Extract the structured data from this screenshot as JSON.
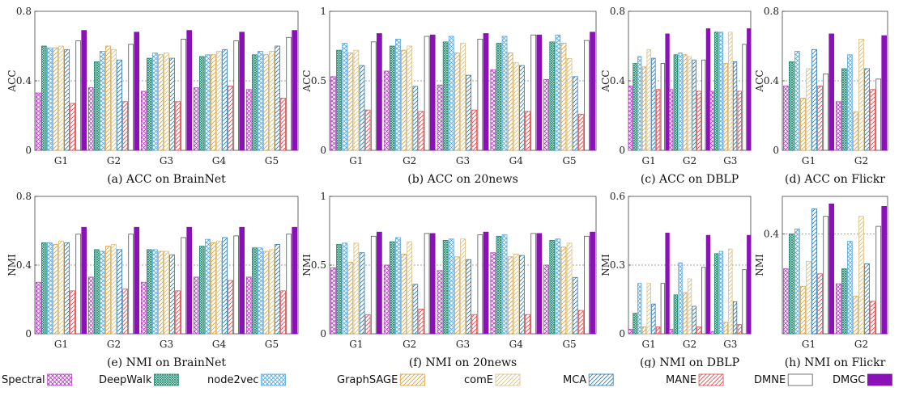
{
  "methods": [
    {
      "name": "Spectral",
      "color": "#b040c0",
      "pattern": "cross"
    },
    {
      "name": "DeepWalk",
      "color": "#1f8a70",
      "pattern": "dense"
    },
    {
      "name": "node2vec",
      "color": "#58a8e0",
      "pattern": "cross"
    },
    {
      "name": "GraphSAGE",
      "color": "#d8a040",
      "pattern": "diag"
    },
    {
      "name": "comE",
      "color": "#d8c080",
      "pattern": "diag"
    },
    {
      "name": "MCA",
      "color": "#2a7ab0",
      "pattern": "diag"
    },
    {
      "name": "MANE",
      "color": "#e04848",
      "pattern": "diag"
    },
    {
      "name": "DMNE",
      "color": "#555555",
      "pattern": "none"
    },
    {
      "name": "DMGC",
      "color": "#8b10b8",
      "pattern": "solid"
    }
  ],
  "chart_data": [
    {
      "type": "bar",
      "title": "",
      "caption": "(a)  ACC on BrainNet",
      "ylabel": "ACC",
      "ylim": [
        0,
        0.8
      ],
      "yticks": [
        "0",
        "0.4",
        "0.8"
      ],
      "ytick_values": [
        0,
        0.4,
        0.8
      ],
      "dashed_at": 0.4,
      "categories": [
        "G1",
        "G2",
        "G3",
        "G4",
        "G5"
      ],
      "series": [
        {
          "values": [
            0.33,
            0.36,
            0.34,
            0.36,
            0.35
          ]
        },
        {
          "values": [
            0.6,
            0.51,
            0.53,
            0.54,
            0.55
          ]
        },
        {
          "values": [
            0.59,
            0.57,
            0.56,
            0.55,
            0.57
          ]
        },
        {
          "values": [
            0.59,
            0.6,
            0.55,
            0.55,
            0.55
          ]
        },
        {
          "values": [
            0.6,
            0.58,
            0.56,
            0.57,
            0.57
          ]
        },
        {
          "values": [
            0.58,
            0.52,
            0.53,
            0.58,
            0.6
          ]
        },
        {
          "values": [
            0.27,
            0.28,
            0.28,
            0.37,
            0.3
          ]
        },
        {
          "values": [
            0.63,
            0.61,
            0.64,
            0.63,
            0.65
          ]
        },
        {
          "values": [
            0.69,
            0.68,
            0.69,
            0.68,
            0.69
          ]
        }
      ]
    },
    {
      "type": "bar",
      "title": "",
      "caption": "(b)  ACC on 20news",
      "ylabel": "ACC",
      "ylim": [
        0,
        1
      ],
      "yticks": [
        "0",
        "0.5",
        "1"
      ],
      "ytick_values": [
        0,
        0.5,
        1
      ],
      "dashed_at": 0.5,
      "categories": [
        "G1",
        "G2",
        "G3",
        "G4",
        "G5"
      ],
      "series": [
        {
          "values": [
            0.53,
            0.57,
            0.47,
            0.58,
            0.51
          ]
        },
        {
          "values": [
            0.72,
            0.75,
            0.78,
            0.77,
            0.78
          ]
        },
        {
          "values": [
            0.77,
            0.8,
            0.82,
            0.82,
            0.83
          ]
        },
        {
          "values": [
            0.7,
            0.72,
            0.7,
            0.7,
            0.77
          ]
        },
        {
          "values": [
            0.72,
            0.75,
            0.77,
            0.63,
            0.66
          ]
        },
        {
          "values": [
            0.61,
            0.46,
            0.54,
            0.61,
            0.53
          ]
        },
        {
          "values": [
            0.29,
            0.28,
            0.29,
            0.28,
            0.26
          ]
        },
        {
          "values": [
            0.78,
            0.82,
            0.8,
            0.83,
            0.79
          ]
        },
        {
          "values": [
            0.84,
            0.83,
            0.84,
            0.83,
            0.85
          ]
        }
      ]
    },
    {
      "type": "bar",
      "title": "",
      "caption": "(c)  ACC on DBLP",
      "ylabel": "ACC",
      "ylim": [
        0,
        0.8
      ],
      "yticks": [
        "0",
        "0.4",
        "0.8"
      ],
      "ytick_values": [
        0,
        0.4,
        0.8
      ],
      "dashed_at": 0.4,
      "categories": [
        "G1",
        "G2",
        "G3"
      ],
      "series": [
        {
          "values": [
            0.37,
            0.35,
            0.34
          ]
        },
        {
          "values": [
            0.5,
            0.55,
            0.68
          ]
        },
        {
          "values": [
            0.54,
            0.56,
            0.68
          ]
        },
        {
          "values": [
            0.48,
            0.55,
            0.5
          ]
        },
        {
          "values": [
            0.58,
            0.54,
            0.68
          ]
        },
        {
          "values": [
            0.53,
            0.52,
            0.51
          ]
        },
        {
          "values": [
            0.35,
            0.34,
            0.34
          ]
        },
        {
          "values": [
            0.5,
            0.52,
            0.61
          ]
        },
        {
          "values": [
            0.67,
            0.7,
            0.7
          ]
        }
      ]
    },
    {
      "type": "bar",
      "title": "",
      "caption": "(d)  ACC on Flickr",
      "ylabel": "ACC",
      "ylim": [
        0,
        0.8
      ],
      "yticks": [
        "0",
        "0.4",
        "0.8"
      ],
      "ytick_values": [
        0,
        0.4,
        0.8
      ],
      "dashed_at": 0.4,
      "categories": [
        "G1",
        "G2"
      ],
      "series": [
        {
          "values": [
            0.37,
            0.28
          ]
        },
        {
          "values": [
            0.51,
            0.47
          ]
        },
        {
          "values": [
            0.57,
            0.55
          ]
        },
        {
          "values": [
            0.3,
            0.22
          ]
        },
        {
          "values": [
            0.47,
            0.64
          ]
        },
        {
          "values": [
            0.58,
            0.47
          ]
        },
        {
          "values": [
            0.37,
            0.35
          ]
        },
        {
          "values": [
            0.44,
            0.41
          ]
        },
        {
          "values": [
            0.67,
            0.66
          ]
        }
      ]
    },
    {
      "type": "bar",
      "title": "",
      "caption": "(e)  NMI on BrainNet",
      "ylabel": "NMI",
      "ylim": [
        0,
        0.8
      ],
      "yticks": [
        "0",
        "0.4",
        "0.8"
      ],
      "ytick_values": [
        0,
        0.4,
        0.8
      ],
      "dashed_at": 0.4,
      "categories": [
        "G1",
        "G2",
        "G3",
        "G4",
        "G5"
      ],
      "series": [
        {
          "values": [
            0.3,
            0.33,
            0.3,
            0.33,
            0.33
          ]
        },
        {
          "values": [
            0.53,
            0.49,
            0.49,
            0.51,
            0.5
          ]
        },
        {
          "values": [
            0.53,
            0.48,
            0.49,
            0.55,
            0.5
          ]
        },
        {
          "values": [
            0.52,
            0.51,
            0.48,
            0.53,
            0.48
          ]
        },
        {
          "values": [
            0.54,
            0.52,
            0.48,
            0.54,
            0.49
          ]
        },
        {
          "values": [
            0.53,
            0.49,
            0.46,
            0.56,
            0.52
          ]
        },
        {
          "values": [
            0.25,
            0.26,
            0.25,
            0.31,
            0.25
          ]
        },
        {
          "values": [
            0.58,
            0.58,
            0.56,
            0.57,
            0.58
          ]
        },
        {
          "values": [
            0.62,
            0.62,
            0.62,
            0.62,
            0.62
          ]
        }
      ]
    },
    {
      "type": "bar",
      "title": "",
      "caption": "(f)  NMI on 20news",
      "ylabel": "NMI",
      "ylim": [
        0,
        1
      ],
      "yticks": [
        "0",
        "0.5",
        "1"
      ],
      "ytick_values": [
        0,
        0.5,
        1
      ],
      "dashed_at": 0.5,
      "categories": [
        "G1",
        "G2",
        "G3",
        "G4",
        "G5"
      ],
      "series": [
        {
          "values": [
            0.48,
            0.5,
            0.46,
            0.59,
            0.5
          ]
        },
        {
          "values": [
            0.65,
            0.67,
            0.68,
            0.71,
            0.68
          ]
        },
        {
          "values": [
            0.66,
            0.7,
            0.69,
            0.72,
            0.69
          ]
        },
        {
          "values": [
            0.52,
            0.58,
            0.56,
            0.56,
            0.63
          ]
        },
        {
          "values": [
            0.66,
            0.67,
            0.69,
            0.58,
            0.66
          ]
        },
        {
          "values": [
            0.59,
            0.36,
            0.54,
            0.57,
            0.41
          ]
        },
        {
          "values": [
            0.14,
            0.18,
            0.14,
            0.14,
            0.17
          ]
        },
        {
          "values": [
            0.71,
            0.73,
            0.72,
            0.73,
            0.71
          ]
        },
        {
          "values": [
            0.74,
            0.73,
            0.74,
            0.73,
            0.74
          ]
        }
      ]
    },
    {
      "type": "bar",
      "title": "",
      "caption": "(g)  NMI on DBLP",
      "ylabel": "NMI",
      "ylim": [
        0,
        0.6
      ],
      "yticks": [
        "0",
        "0.3",
        "0.6"
      ],
      "ytick_values": [
        0,
        0.3,
        0.6
      ],
      "dashed_at": 0.3,
      "categories": [
        "G1",
        "G2",
        "G3"
      ],
      "series": [
        {
          "values": [
            0.02,
            0.02,
            0.01
          ]
        },
        {
          "values": [
            0.09,
            0.17,
            0.35
          ]
        },
        {
          "values": [
            0.22,
            0.31,
            0.36
          ]
        },
        {
          "values": [
            0.03,
            0.18,
            0.05
          ]
        },
        {
          "values": [
            0.22,
            0.24,
            0.37
          ]
        },
        {
          "values": [
            0.13,
            0.12,
            0.14
          ]
        },
        {
          "values": [
            0.03,
            0.03,
            0.04
          ]
        },
        {
          "values": [
            0.22,
            0.29,
            0.28
          ]
        },
        {
          "values": [
            0.44,
            0.43,
            0.43
          ]
        }
      ]
    },
    {
      "type": "bar",
      "title": "",
      "caption": "(h)  NMI on Flickr",
      "ylabel": "NMI",
      "ylim": [
        0,
        0.55
      ],
      "yticks": [
        "0.4"
      ],
      "ytick_values": [
        0.4
      ],
      "dashed_at": 0.4,
      "categories": [
        "G1",
        "G2"
      ],
      "series": [
        {
          "values": [
            0.26,
            0.2
          ]
        },
        {
          "values": [
            0.4,
            0.26
          ]
        },
        {
          "values": [
            0.42,
            0.37
          ]
        },
        {
          "values": [
            0.19,
            0.15
          ]
        },
        {
          "values": [
            0.29,
            0.47
          ]
        },
        {
          "values": [
            0.5,
            0.28
          ]
        },
        {
          "values": [
            0.24,
            0.13
          ]
        },
        {
          "values": [
            0.47,
            0.43
          ]
        },
        {
          "values": [
            0.52,
            0.51
          ]
        }
      ]
    }
  ]
}
